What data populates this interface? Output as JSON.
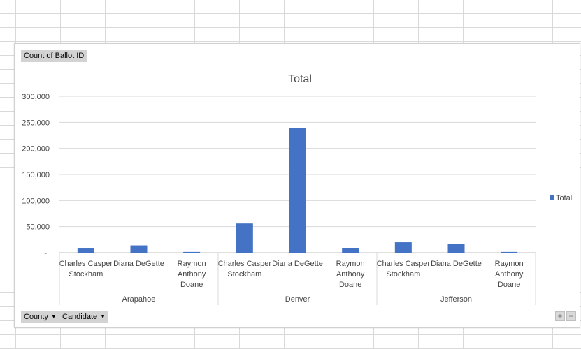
{
  "pivot": {
    "value_field": "Count of Ballot ID",
    "axis_fields": [
      {
        "label": "County"
      },
      {
        "label": "Candidate"
      }
    ]
  },
  "zoom": {
    "plus": "+",
    "minus": "−"
  },
  "legend": {
    "swatch_color": "#4472c4"
  },
  "chart_data": {
    "type": "bar",
    "title": "Total",
    "legend_placement": "right",
    "grid": true,
    "ylim": [
      0,
      300000
    ],
    "y_ticks": [
      "-",
      "50,000",
      "100,000",
      "150,000",
      "200,000",
      "250,000",
      "300,000"
    ],
    "groups": [
      {
        "name": "Arapahoe",
        "categories": [
          "Charles Casper Stockham",
          "Diana DeGette",
          "Raymon Anthony Doane"
        ]
      },
      {
        "name": "Denver",
        "categories": [
          "Charles Casper Stockham",
          "Diana DeGette",
          "Raymon Anthony Doane"
        ]
      },
      {
        "name": "Jefferson",
        "categories": [
          "Charles Casper Stockham",
          "Diana DeGette",
          "Raymon Anthony Doane"
        ]
      }
    ],
    "category_lines": [
      [
        "Charles Casper",
        "Stockham"
      ],
      [
        "Diana DeGette"
      ],
      [
        "Raymon",
        "Anthony",
        "Doane"
      ]
    ],
    "series": [
      {
        "name": "Total",
        "color": "#4472c4",
        "values": [
          8000,
          14000,
          1500,
          56000,
          239000,
          9000,
          20000,
          17000,
          1500
        ]
      }
    ]
  }
}
